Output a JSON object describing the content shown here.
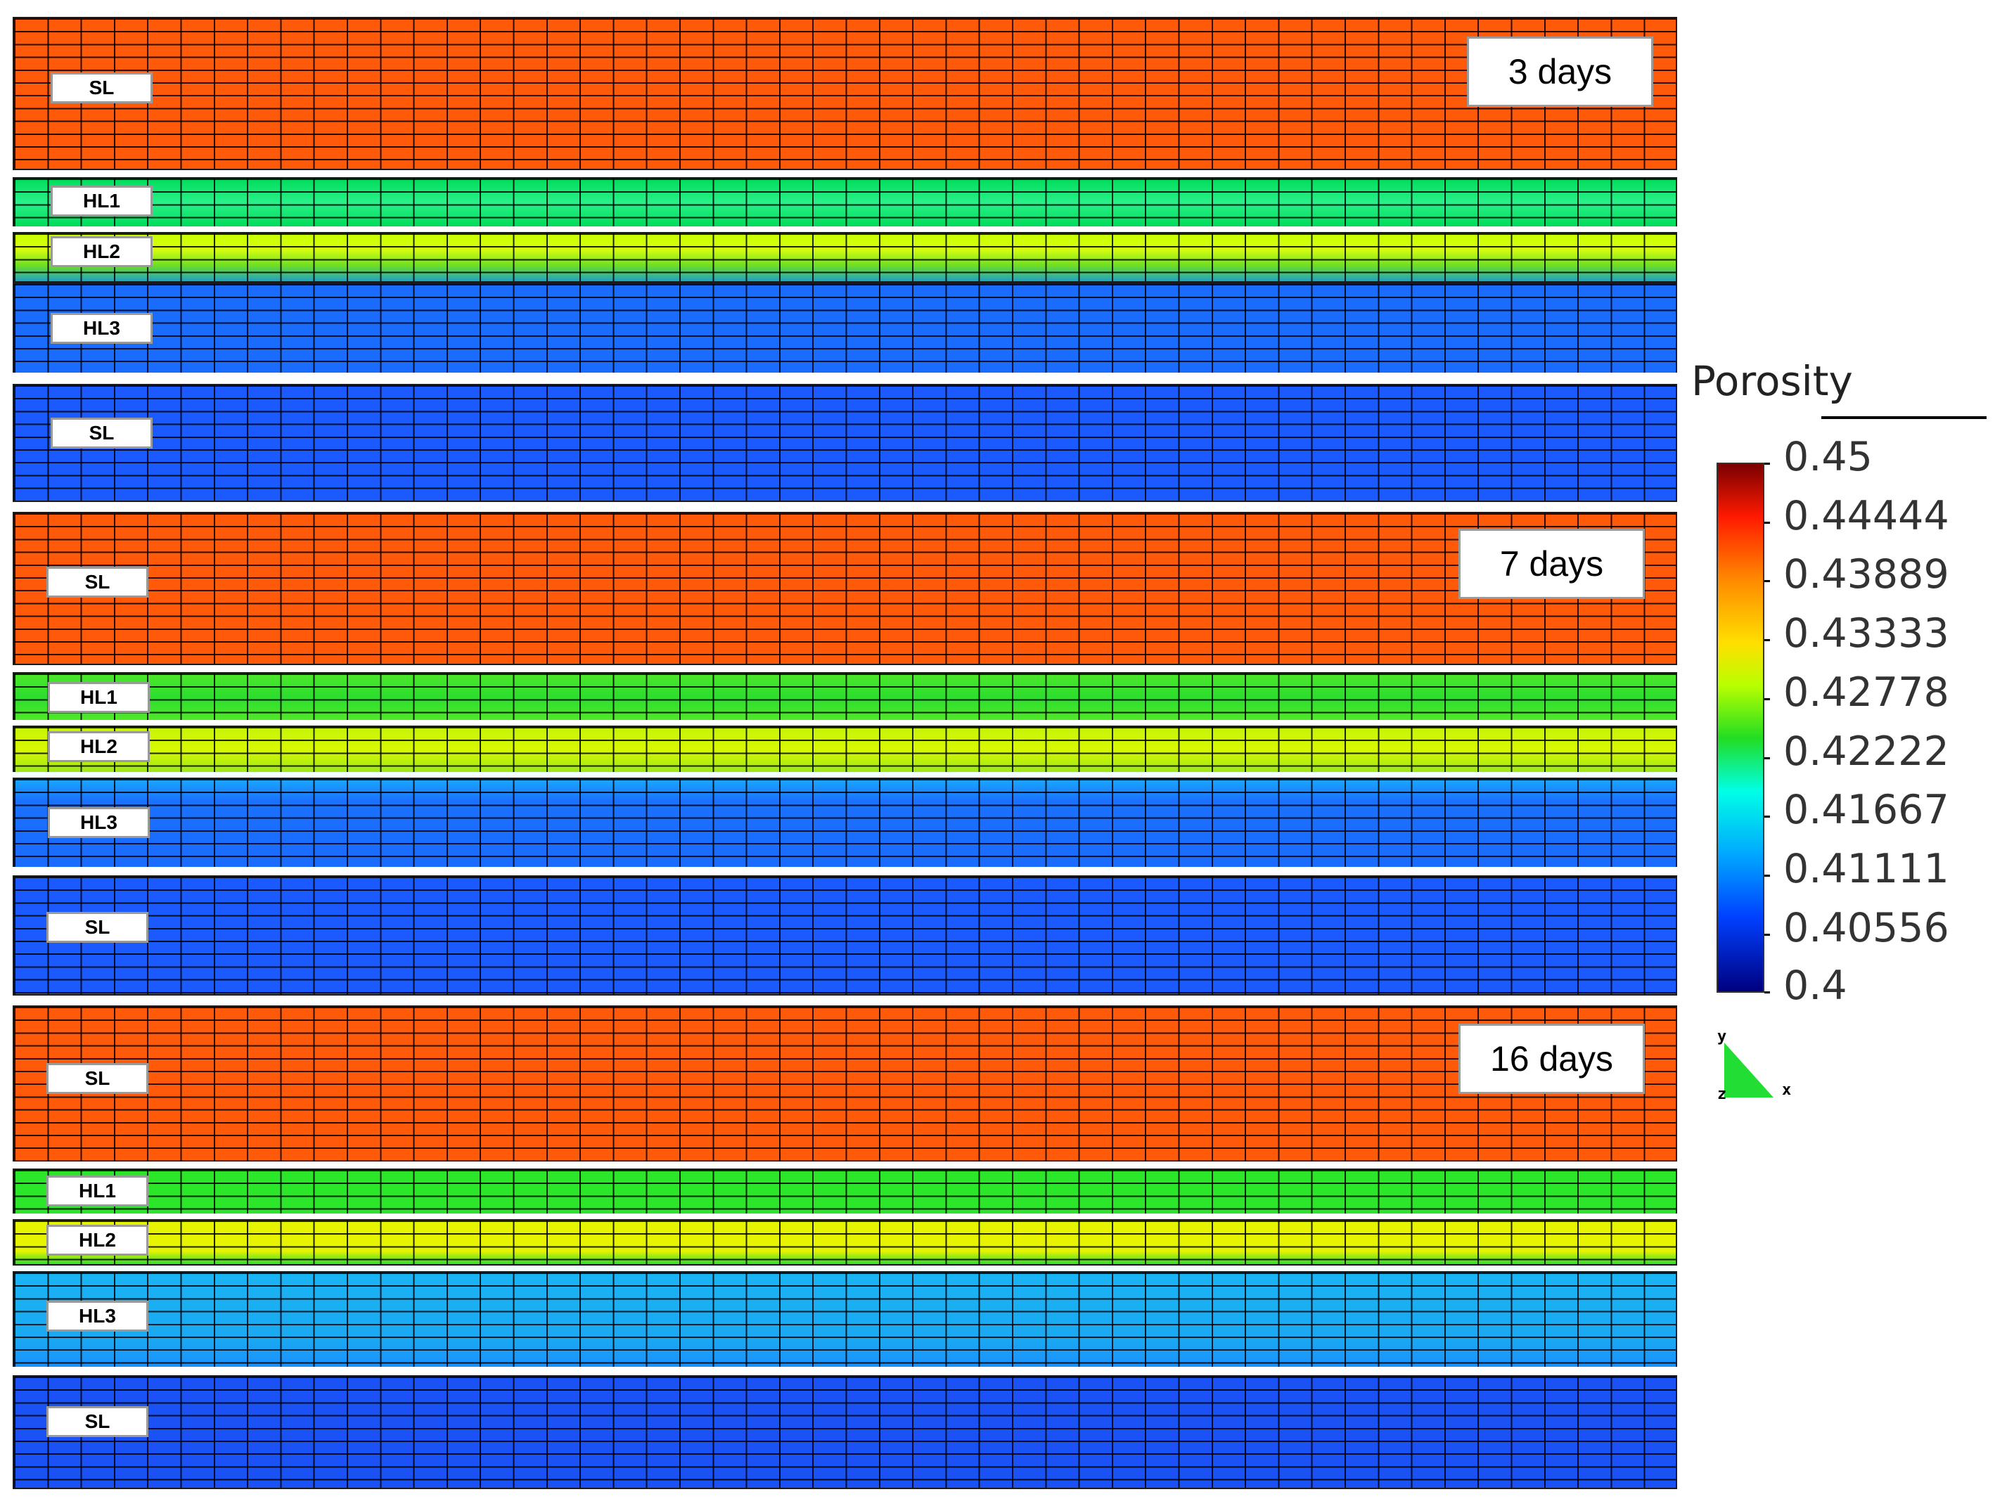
{
  "colors": {
    "sl_top": "#ff5a0a",
    "hl1_a": "#00dc5a",
    "hl1_b": "#18f07a",
    "hl2_a": "#c8ff00",
    "hl2_b": "#78e228",
    "hl3": "#1a6cff",
    "sl_bottom": "#1a5aff",
    "hl1_16": "#2ce629",
    "hl2_16": "#e6f400",
    "hl3_16": "#1aaaf2",
    "separator": "#ffffff"
  },
  "panels": [
    {
      "time_label": "3 days",
      "layers": [
        {
          "name": "SL"
        },
        {
          "name": "HL1"
        },
        {
          "name": "HL2"
        },
        {
          "name": "HL3"
        },
        {
          "name": "SL"
        }
      ]
    },
    {
      "time_label": "7 days",
      "layers": [
        {
          "name": "SL"
        },
        {
          "name": "HL1"
        },
        {
          "name": "HL2"
        },
        {
          "name": "HL3"
        },
        {
          "name": "SL"
        }
      ]
    },
    {
      "time_label": "16 days",
      "layers": [
        {
          "name": "SL"
        },
        {
          "name": "HL1"
        },
        {
          "name": "HL2"
        },
        {
          "name": "HL3"
        },
        {
          "name": "SL"
        }
      ]
    }
  ],
  "legend": {
    "title": "Porosity",
    "ticks": [
      "0.45",
      "0.44444",
      "0.43889",
      "0.43333",
      "0.42778",
      "0.42222",
      "0.41667",
      "0.41111",
      "0.40556",
      "0.4"
    ],
    "range": [
      0.4,
      0.45
    ]
  },
  "axes": {
    "y": "y",
    "z": "z",
    "x": "x"
  }
}
